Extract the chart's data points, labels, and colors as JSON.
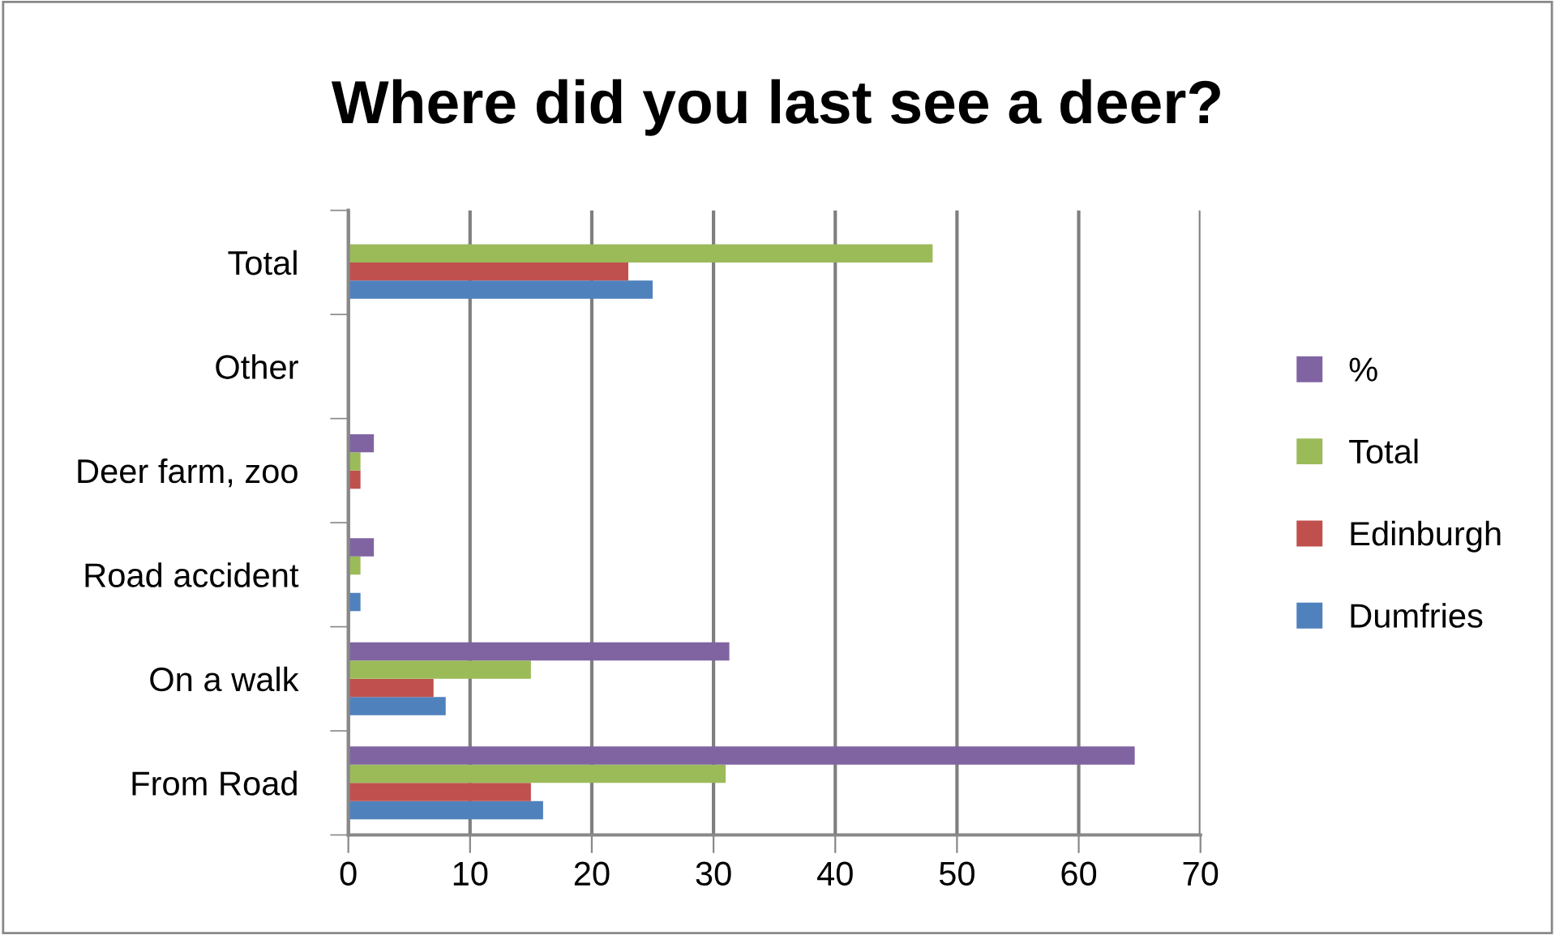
{
  "chart_data": {
    "type": "bar",
    "orientation": "horizontal",
    "title": "Where did you last see a deer?",
    "categories": [
      "Total",
      "Other",
      "Deer farm, zoo",
      "Road accident",
      "On a walk",
      "From Road"
    ],
    "series": [
      {
        "name": "Dumfries",
        "color": "#4f81bd",
        "values": [
          25,
          0,
          0,
          1,
          8,
          16
        ]
      },
      {
        "name": "Edinburgh",
        "color": "#c0504d",
        "values": [
          23,
          0,
          1,
          0,
          7,
          15
        ]
      },
      {
        "name": "Total",
        "color": "#9bbb59",
        "values": [
          48,
          0,
          1,
          1,
          15,
          31
        ]
      },
      {
        "name": "%",
        "color": "#8064a2",
        "values": [
          null,
          0,
          2.1,
          2.1,
          31.3,
          64.6
        ]
      }
    ],
    "xlim": [
      0,
      70
    ],
    "xticks": [
      0,
      10,
      20,
      30,
      40,
      50,
      60,
      70
    ],
    "grid": "x",
    "legend": "right"
  }
}
